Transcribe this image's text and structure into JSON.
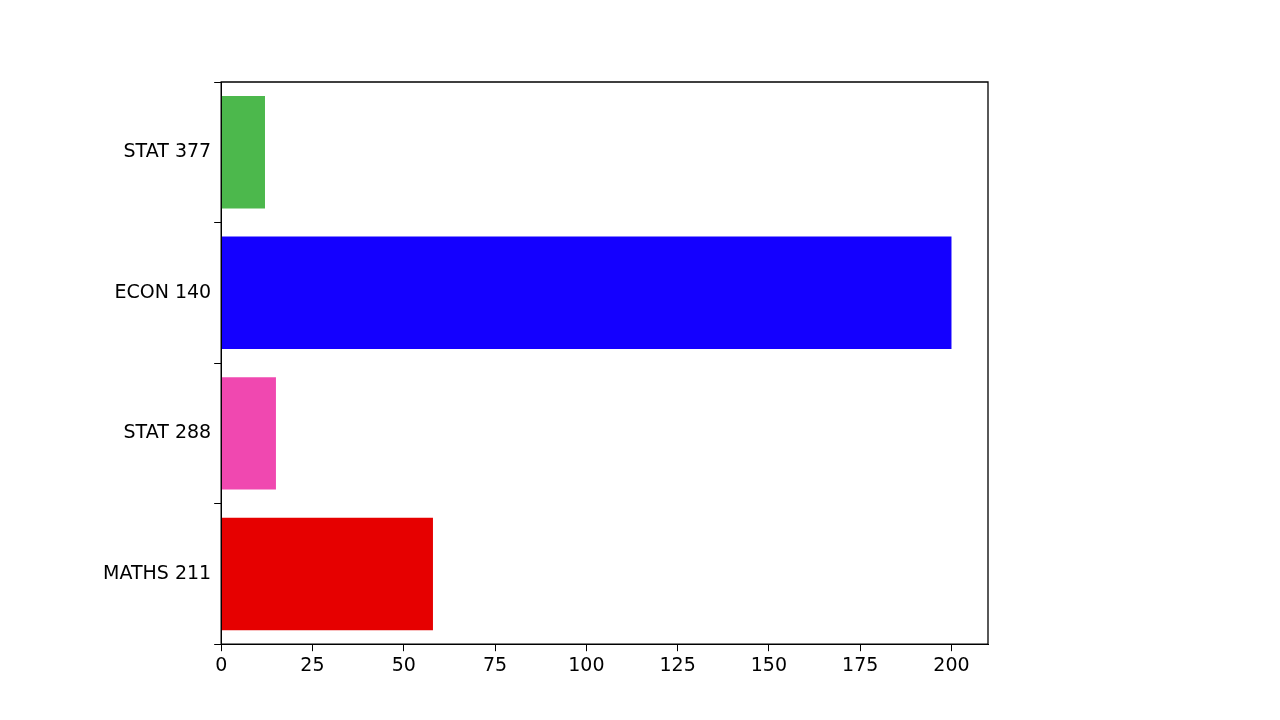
{
  "chart_data": {
    "type": "bar",
    "orientation": "horizontal",
    "categories": [
      "STAT 377",
      "ECON 140",
      "STAT 288",
      "MATHS 211"
    ],
    "values": [
      12,
      200,
      15,
      58
    ],
    "colors": [
      "#4cb84c",
      "#1400ff",
      "#f048b0",
      "#e60000"
    ],
    "xlim": [
      0,
      210
    ],
    "xticks": [
      0,
      25,
      50,
      75,
      100,
      125,
      150,
      175,
      200
    ],
    "grid": false,
    "legend": false
  }
}
